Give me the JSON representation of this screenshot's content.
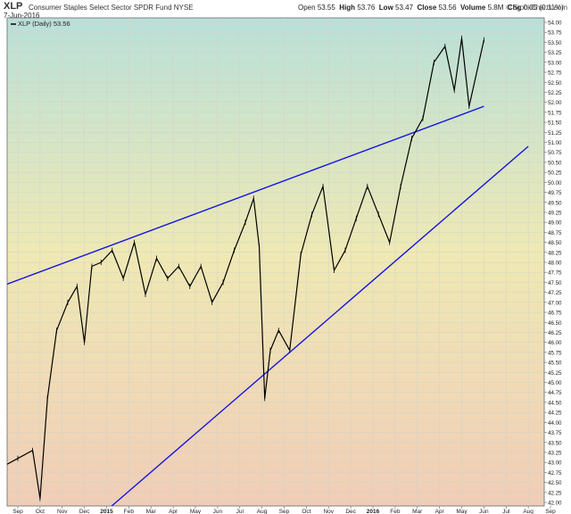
{
  "header": {
    "ticker": "XLP",
    "fund_name": "Consumer Staples Select Sector SPDR Fund",
    "exchange": "NYSE",
    "date": "7-Jun-2016",
    "open_label": "Open",
    "open": "53.55",
    "high_label": "High",
    "high": "53.76",
    "low_label": "Low",
    "low": "53.47",
    "close_label": "Close",
    "close": "53.56",
    "volume_label": "Volume",
    "volume": "5.8M",
    "chg_label": "Chg",
    "chg": "0.05 (0.11%)",
    "credit": "© StockCharts.com"
  },
  "colors": {
    "background_top": "#b9e0d9",
    "background_mid": "#efe9b4",
    "background_bottom": "#f0cdb7",
    "price": "#000000",
    "trendline": "#1414e0",
    "grid": "#d2d2c8"
  },
  "chart_data": {
    "type": "line",
    "legend": "XLP (Daily) 53.56",
    "legend_position": "top-left",
    "grid": true,
    "y_axis_side": "right",
    "ylim": [
      42.0,
      54.0
    ],
    "y_ticks": [
      42.0,
      42.25,
      42.5,
      42.75,
      43.0,
      43.25,
      43.5,
      43.75,
      44.0,
      44.25,
      44.5,
      44.75,
      45.0,
      45.25,
      45.5,
      45.75,
      46.0,
      46.25,
      46.5,
      46.75,
      47.0,
      47.25,
      47.5,
      47.75,
      48.0,
      48.25,
      48.5,
      48.75,
      49.0,
      49.25,
      49.5,
      49.75,
      50.0,
      50.25,
      50.5,
      50.75,
      51.0,
      51.25,
      51.5,
      51.75,
      52.0,
      52.25,
      52.5,
      52.75,
      53.0,
      53.25,
      53.5,
      53.75,
      54.0
    ],
    "x_ticks": [
      "Sep",
      "Oct",
      "Nov",
      "Dec",
      "2015",
      "Feb",
      "Mar",
      "Apr",
      "May",
      "Jun",
      "Jul",
      "Aug",
      "Sep",
      "Oct",
      "Nov",
      "Dec",
      "2016",
      "Feb",
      "Mar",
      "Apr",
      "May",
      "Jun",
      "Jul",
      "Aug",
      "Sep"
    ],
    "series": [
      {
        "name": "XLP",
        "x": [
          "Aug 2014",
          "Sep 2014",
          "Oct 2014",
          "Oct 2014",
          "Oct 2014",
          "Nov 2014",
          "Nov 2014",
          "Dec 2014",
          "Dec 2014",
          "Dec 2014",
          "Jan 2015",
          "Jan 2015",
          "Feb 2015",
          "Feb 2015",
          "Mar 2015",
          "Mar 2015",
          "Apr 2015",
          "Apr 2015",
          "May 2015",
          "May 2015",
          "Jun 2015",
          "Jun 2015",
          "Jul 2015",
          "Jul 2015",
          "Aug 2015",
          "Aug 2015",
          "Aug 2015",
          "Aug 2015",
          "Sep 2015",
          "Sep 2015",
          "Oct 2015",
          "Oct 2015",
          "Nov 2015",
          "Nov 2015",
          "Dec 2015",
          "Dec 2015",
          "Jan 2016",
          "Jan 2016",
          "Feb 2016",
          "Feb 2016",
          "Mar 2016",
          "Mar 2016",
          "Apr 2016",
          "Apr 2016",
          "May 2016",
          "May 2016",
          "May 2016",
          "Jun 2016"
        ],
        "y": [
          42.8,
          43.1,
          43.3,
          42.1,
          44.6,
          46.3,
          47.0,
          47.4,
          46.0,
          47.9,
          48.0,
          48.3,
          47.6,
          48.5,
          47.2,
          48.1,
          47.6,
          47.9,
          47.4,
          47.9,
          47.0,
          47.5,
          48.3,
          49.0,
          49.6,
          48.4,
          44.6,
          45.8,
          46.3,
          45.8,
          48.2,
          49.2,
          49.9,
          47.8,
          48.3,
          49.1,
          49.9,
          49.2,
          48.5,
          49.9,
          51.1,
          51.6,
          53.0,
          53.4,
          52.3,
          53.6,
          51.9,
          53.56
        ]
      }
    ],
    "trendlines": [
      {
        "x": [
          "Aug 2014",
          "Jun 2016"
        ],
        "y": [
          47.35,
          51.9
        ]
      },
      {
        "x": [
          "Jan 2015",
          "Aug 2016"
        ],
        "y": [
          41.8,
          50.9
        ]
      }
    ]
  }
}
